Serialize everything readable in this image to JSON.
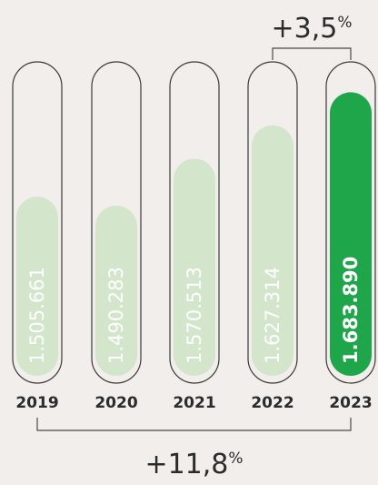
{
  "chart_data": {
    "type": "bar",
    "categories": [
      "2019",
      "2020",
      "2021",
      "2022",
      "2023"
    ],
    "values": [
      1505661,
      1490283,
      1570513,
      1627314,
      1683890
    ],
    "value_labels": [
      "1.505.661",
      "1.490.283",
      "1.570.513",
      "1.627.314",
      "1.683.890"
    ],
    "highlighted": "2023",
    "annotations": [
      {
        "from": "2022",
        "to": "2023",
        "value": "+3,5",
        "unit": "%"
      },
      {
        "from": "2019",
        "to": "2023",
        "value": "+11,8",
        "unit": "%"
      }
    ],
    "colors": {
      "bar": "#d3e6cc",
      "bar_highlight": "#20a64a",
      "label": "#ffffff",
      "outline": "#3a3a3a",
      "bracket": "#4a4a4a"
    },
    "ylim": [
      1200000,
      1700000
    ]
  }
}
